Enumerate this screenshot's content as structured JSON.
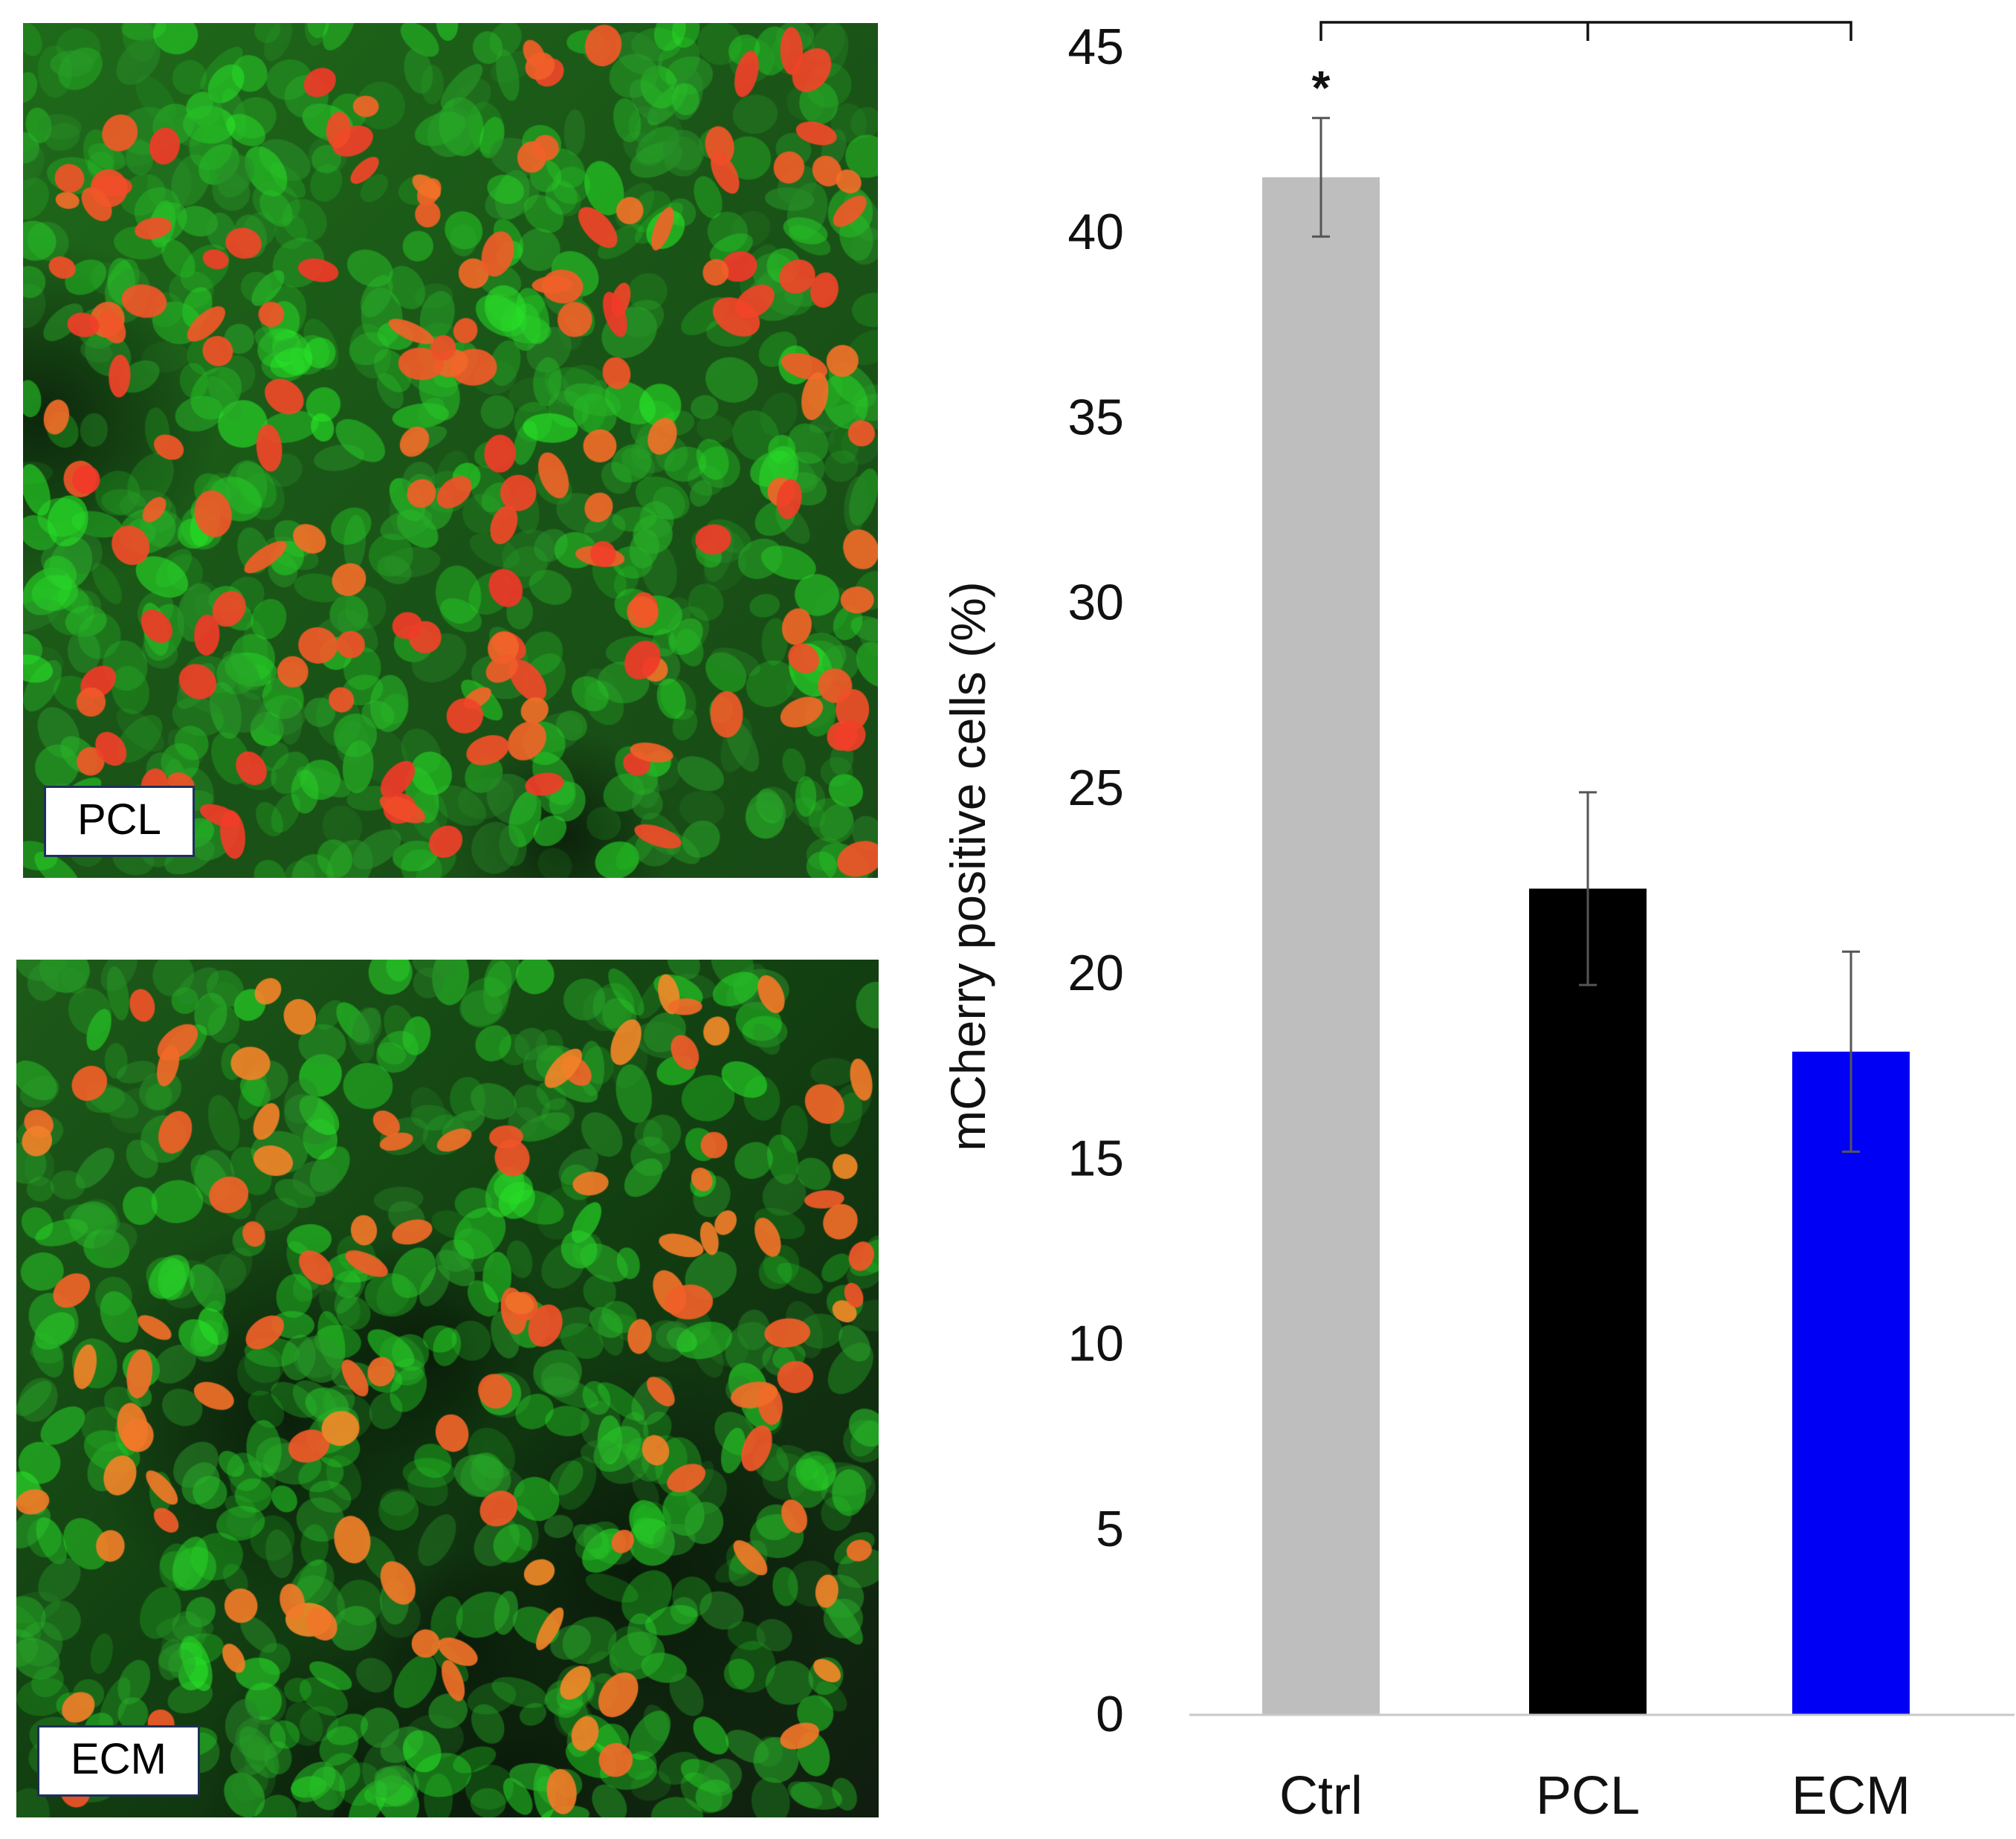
{
  "panels": [
    {
      "label": "PCL"
    },
    {
      "label": "ECM"
    }
  ],
  "chart_data": {
    "type": "bar",
    "categories": [
      "Ctrl",
      "PCL",
      "ECM"
    ],
    "values": [
      41.5,
      22.3,
      17.9
    ],
    "error": [
      1.6,
      2.6,
      2.7
    ],
    "bar_colors": [
      "#bebebe",
      "#000000",
      "#0000f5"
    ],
    "title": "",
    "xlabel": "",
    "ylabel": "mCherry positive cells (%)",
    "ylim": [
      0,
      45
    ],
    "yticks": [
      0,
      5,
      10,
      15,
      20,
      25,
      30,
      35,
      40,
      45
    ],
    "grid": false,
    "annotations": [
      {
        "text": "*",
        "category": "Ctrl"
      }
    ],
    "significance_bracket": {
      "from": "Ctrl",
      "to": "ECM",
      "middle_tick": "PCL"
    }
  }
}
